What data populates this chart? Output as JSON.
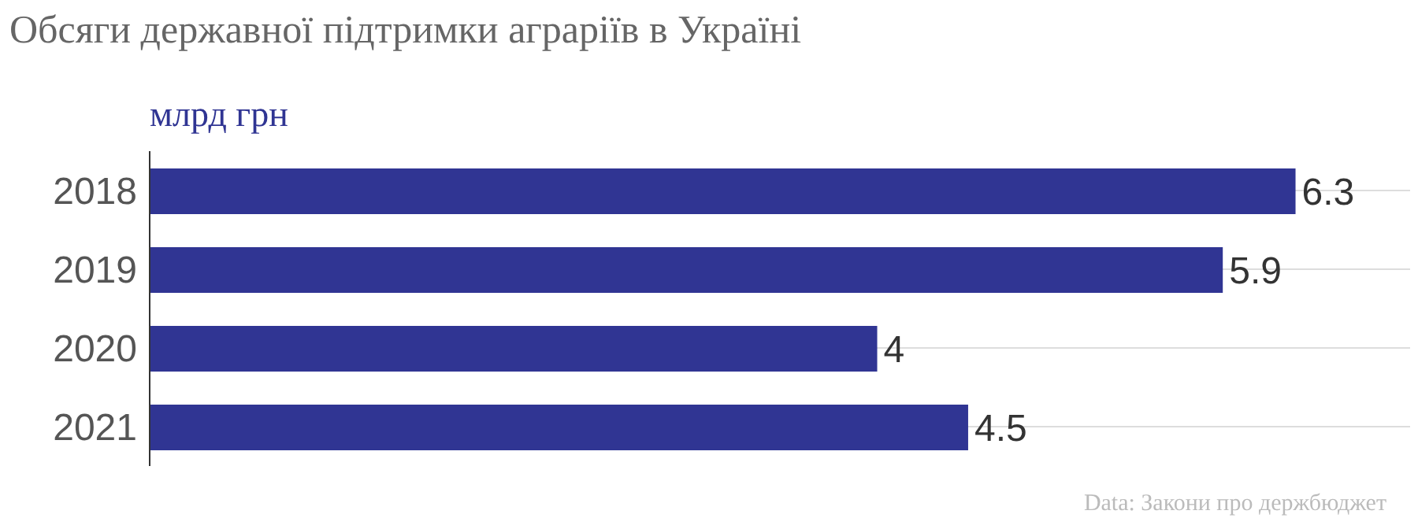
{
  "chart_data": {
    "type": "bar",
    "orientation": "horizontal",
    "title": "Обсяги державної підтримки аграріїв в Україні",
    "subtitle": "млрд грн",
    "categories": [
      "2018",
      "2019",
      "2020",
      "2021"
    ],
    "values": [
      6.3,
      5.9,
      4,
      4.5
    ],
    "color": "#303593",
    "data_labels": true,
    "grid": "y",
    "annotations": [
      "Data: Закони про держбюджет"
    ]
  }
}
